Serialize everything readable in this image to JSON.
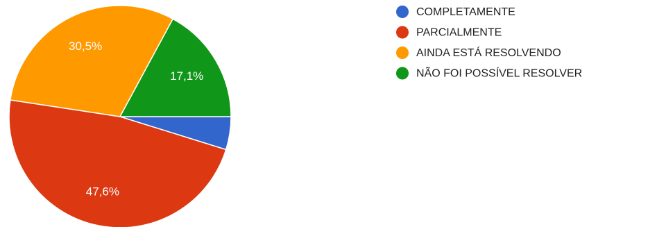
{
  "chart_data": {
    "type": "pie",
    "title": "",
    "legend_position": "right",
    "slices": [
      {
        "name": "COMPLETAMENTE",
        "value": 4.8,
        "label": "",
        "color": "#3366cc"
      },
      {
        "name": "PARCIALMENTE",
        "value": 47.6,
        "label": "47,6%",
        "color": "#dc3912"
      },
      {
        "name": "AINDA ESTÁ RESOLVENDO",
        "value": 30.5,
        "label": "30,5%",
        "color": "#ff9900"
      },
      {
        "name": "NÃO FOI POSSÍVEL RESOLVER",
        "value": 17.1,
        "label": "17,1%",
        "color": "#109618"
      }
    ]
  }
}
